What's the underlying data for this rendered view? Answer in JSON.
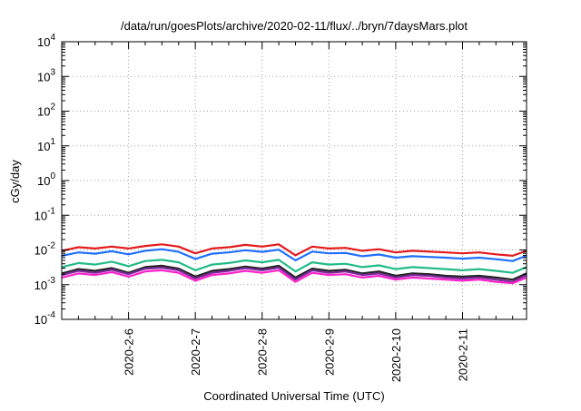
{
  "chart_data": {
    "type": "line",
    "title": "/data/run/goesPlots/archive/2020-02-11/flux/../bryn/7daysMars.plot",
    "xlabel": "Coordinated Universal Time (UTC)",
    "ylabel": "cGy/day",
    "yscale": "log",
    "ylim": [
      0.0001,
      10000
    ],
    "y_ticks": [
      {
        "base": "10",
        "exp": "-4"
      },
      {
        "base": "10",
        "exp": "-3"
      },
      {
        "base": "10",
        "exp": "-2"
      },
      {
        "base": "10",
        "exp": "-1"
      },
      {
        "base": "10",
        "exp": "0"
      },
      {
        "base": "10",
        "exp": "1"
      },
      {
        "base": "10",
        "exp": "2"
      },
      {
        "base": "10",
        "exp": "3"
      },
      {
        "base": "10",
        "exp": "4"
      }
    ],
    "x_ticks": [
      "2020-2-6",
      "2020-2-7",
      "2020-2-8",
      "2020-2-9",
      "2020-2-10",
      "2020-2-11"
    ],
    "xlim": [
      "2020-02-05 00:00",
      "2020-02-11 23:00"
    ],
    "grid": true,
    "legend": "none",
    "x": [
      "2020-02-05 00:00",
      "2020-02-05 06:00",
      "2020-02-05 12:00",
      "2020-02-05 18:00",
      "2020-02-06 00:00",
      "2020-02-06 06:00",
      "2020-02-06 12:00",
      "2020-02-06 18:00",
      "2020-02-07 00:00",
      "2020-02-07 06:00",
      "2020-02-07 12:00",
      "2020-02-07 18:00",
      "2020-02-08 00:00",
      "2020-02-08 06:00",
      "2020-02-08 12:00",
      "2020-02-08 18:00",
      "2020-02-09 00:00",
      "2020-02-09 06:00",
      "2020-02-09 12:00",
      "2020-02-09 18:00",
      "2020-02-10 00:00",
      "2020-02-10 06:00",
      "2020-02-10 12:00",
      "2020-02-10 18:00",
      "2020-02-11 00:00",
      "2020-02-11 06:00",
      "2020-02-11 12:00",
      "2020-02-11 18:00",
      "2020-02-11 23:00"
    ],
    "series": [
      {
        "color": "#e41a1c",
        "values": [
          0.0095,
          0.012,
          0.011,
          0.0125,
          0.011,
          0.013,
          0.0145,
          0.0125,
          0.008,
          0.011,
          0.012,
          0.014,
          0.0125,
          0.0145,
          0.007,
          0.0125,
          0.011,
          0.0115,
          0.0095,
          0.0105,
          0.0085,
          0.0095,
          0.009,
          0.0085,
          0.008,
          0.0085,
          0.0075,
          0.0068,
          0.0095
        ]
      },
      {
        "color": "#1f6fff",
        "values": [
          0.0068,
          0.0085,
          0.0078,
          0.0092,
          0.0075,
          0.0095,
          0.0105,
          0.0088,
          0.0055,
          0.0078,
          0.0085,
          0.0098,
          0.0088,
          0.0102,
          0.005,
          0.009,
          0.008,
          0.0082,
          0.0066,
          0.0074,
          0.006,
          0.0066,
          0.0063,
          0.006,
          0.0056,
          0.006,
          0.0054,
          0.0048,
          0.0068
        ]
      },
      {
        "color": "#22bb88",
        "values": [
          0.0032,
          0.0042,
          0.0038,
          0.0046,
          0.0034,
          0.0048,
          0.0052,
          0.0044,
          0.0026,
          0.0038,
          0.0042,
          0.005,
          0.0044,
          0.0052,
          0.0024,
          0.0044,
          0.0038,
          0.004,
          0.0032,
          0.0036,
          0.0028,
          0.0032,
          0.003,
          0.0028,
          0.0026,
          0.0028,
          0.0025,
          0.0022,
          0.0032
        ]
      },
      {
        "color": "#222222",
        "values": [
          0.0021,
          0.0028,
          0.0025,
          0.003,
          0.0022,
          0.0032,
          0.0035,
          0.0029,
          0.0017,
          0.0025,
          0.0028,
          0.0033,
          0.0029,
          0.0035,
          0.0016,
          0.0029,
          0.0025,
          0.0027,
          0.0021,
          0.0024,
          0.0018,
          0.0021,
          0.002,
          0.0018,
          0.0017,
          0.0018,
          0.0016,
          0.0014,
          0.0021
        ]
      },
      {
        "color": "#7a2a99",
        "values": [
          0.0019,
          0.0025,
          0.0022,
          0.0027,
          0.002,
          0.0029,
          0.0031,
          0.0026,
          0.0015,
          0.0022,
          0.0025,
          0.003,
          0.0026,
          0.0031,
          0.0014,
          0.0026,
          0.0022,
          0.0024,
          0.0019,
          0.0021,
          0.0016,
          0.0019,
          0.0018,
          0.0016,
          0.0015,
          0.0016,
          0.0014,
          0.0012,
          0.0019
        ]
      },
      {
        "color": "#ff22cc",
        "values": [
          0.0016,
          0.0021,
          0.0019,
          0.0023,
          0.0017,
          0.0024,
          0.0026,
          0.0022,
          0.0013,
          0.0019,
          0.0021,
          0.0025,
          0.0022,
          0.0026,
          0.0012,
          0.0022,
          0.0019,
          0.002,
          0.0016,
          0.0018,
          0.0014,
          0.0016,
          0.0015,
          0.0014,
          0.0013,
          0.0014,
          0.0012,
          0.0011,
          0.0016
        ]
      }
    ]
  }
}
